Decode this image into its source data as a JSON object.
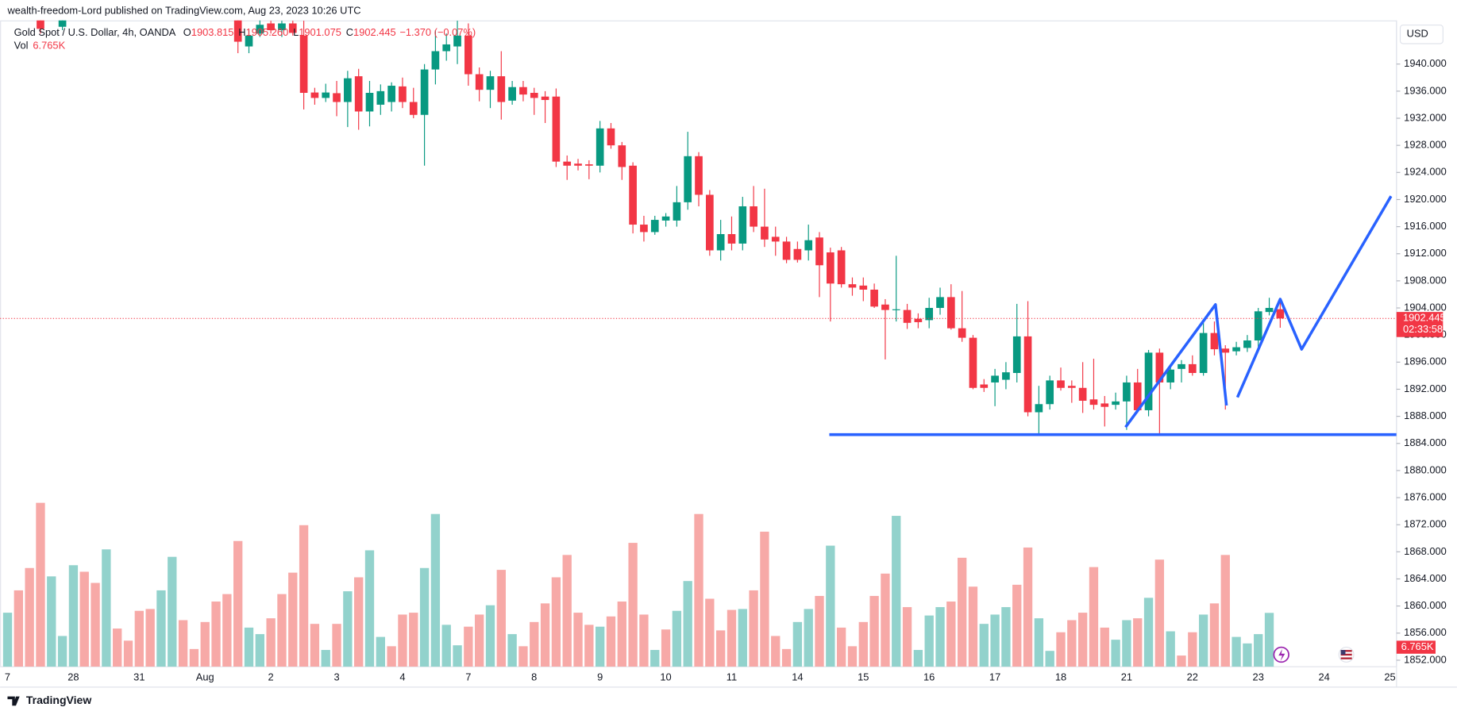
{
  "page": {
    "credit": "wealth-freedom-Lord published on TradingView.com, Aug 23, 2023 10:26 UTC",
    "currency": "USD",
    "brand": "TradingView",
    "countdown": "02:33:58"
  },
  "chart_data": {
    "type": "candlestick",
    "header": {
      "symbol": "Gold Spot / U.S. Dollar, 4h, OANDA",
      "ohlc": [
        {
          "key": "O",
          "value": "1903.815"
        },
        {
          "key": "H",
          "value": "1905.260"
        },
        {
          "key": "L",
          "value": "1901.075"
        },
        {
          "key": "C",
          "value": "1902.445"
        }
      ],
      "change": "−1.370 (−0.07%)",
      "vol_key": "Vol",
      "vol_value": "6.765K"
    },
    "up_color": "#089981",
    "down_color": "#f23645",
    "volume_up_color": "#92d2cc",
    "volume_down_color": "#f7a9a7",
    "drawing_color": "#2962ff",
    "grid": true,
    "xlim": [
      -0.68,
      126.6
    ],
    "ylim": [
      1851.04,
      1946.44
    ],
    "volume_lim": [
      0,
      81200
    ],
    "xticks": [
      {
        "value": 0,
        "label": "7"
      },
      {
        "value": 6,
        "label": "28"
      },
      {
        "value": 12,
        "label": "31"
      },
      {
        "value": 18,
        "label": "Aug"
      },
      {
        "value": 24,
        "label": "2"
      },
      {
        "value": 30,
        "label": "3"
      },
      {
        "value": 36,
        "label": "4"
      },
      {
        "value": 42,
        "label": "7"
      },
      {
        "value": 48,
        "label": "8"
      },
      {
        "value": 54,
        "label": "9"
      },
      {
        "value": 60,
        "label": "10"
      },
      {
        "value": 66,
        "label": "11"
      },
      {
        "value": 72,
        "label": "14"
      },
      {
        "value": 78,
        "label": "15"
      },
      {
        "value": 84,
        "label": "16"
      },
      {
        "value": 90,
        "label": "17"
      },
      {
        "value": 96,
        "label": "18"
      },
      {
        "value": 102,
        "label": "21"
      },
      {
        "value": 108,
        "label": "22"
      },
      {
        "value": 114,
        "label": "23"
      },
      {
        "value": 120,
        "label": "24"
      },
      {
        "value": 126,
        "label": "25"
      }
    ],
    "yticks": [
      {
        "value": 1852,
        "label": "1852.000"
      },
      {
        "value": 1856,
        "label": "1856.000"
      },
      {
        "value": 1860,
        "label": "1860.000"
      },
      {
        "value": 1864,
        "label": "1864.000"
      },
      {
        "value": 1868,
        "label": "1868.000"
      },
      {
        "value": 1872,
        "label": "1872.000"
      },
      {
        "value": 1876,
        "label": "1876.000"
      },
      {
        "value": 1880,
        "label": "1880.000"
      },
      {
        "value": 1884,
        "label": "1884.000"
      },
      {
        "value": 1888,
        "label": "1888.000"
      },
      {
        "value": 1892,
        "label": "1892.000"
      },
      {
        "value": 1896,
        "label": "1896.000"
      },
      {
        "value": 1900,
        "label": "1900.000"
      },
      {
        "value": 1904,
        "label": "1904.000"
      },
      {
        "value": 1908,
        "label": "1908.000"
      },
      {
        "value": 1912,
        "label": "1912.000"
      },
      {
        "value": 1916,
        "label": "1916.000"
      },
      {
        "value": 1920,
        "label": "1920.000"
      },
      {
        "value": 1924,
        "label": "1924.000"
      },
      {
        "value": 1928,
        "label": "1928.000"
      },
      {
        "value": 1932,
        "label": "1932.000"
      },
      {
        "value": 1936,
        "label": "1936.000"
      },
      {
        "value": 1940,
        "label": "1940.000"
      }
    ],
    "candles": {
      "x": [
        3,
        5,
        21,
        22,
        23,
        24,
        25,
        26,
        27,
        28,
        29,
        30,
        31,
        32,
        33,
        34,
        35,
        36,
        37,
        38,
        39,
        40,
        41,
        42,
        43,
        44,
        45,
        46,
        47,
        48,
        49,
        50,
        51,
        52,
        53,
        54,
        55,
        56,
        57,
        58,
        59,
        60,
        61,
        62,
        63,
        64,
        65,
        66,
        67,
        68,
        69,
        70,
        71,
        72,
        73,
        74,
        75,
        76,
        77,
        78,
        79,
        80,
        81,
        82,
        83,
        84,
        85,
        86,
        87,
        88,
        89,
        90,
        91,
        92,
        93,
        94,
        95,
        96,
        97,
        98,
        99,
        100,
        101,
        102,
        103,
        104,
        105,
        106,
        107,
        108,
        109,
        110,
        111,
        112,
        113,
        114,
        115,
        116
      ],
      "open": [
        1948,
        1945.5,
        1947,
        1942.6,
        1944.5,
        1946,
        1945,
        1946,
        1944.2,
        1935.8,
        1935,
        1935.7,
        1934.4,
        1938.2,
        1933,
        1934,
        1934.4,
        1936.7,
        1934.4,
        1932.5,
        1939.2,
        1941.9,
        1942.6,
        1944.2,
        1938.5,
        1936.2,
        1938.2,
        1934.6,
        1936.6,
        1935.75,
        1935.2,
        1935.2,
        1925.6,
        1925.3,
        1925.2,
        1925,
        1930.5,
        1928,
        1925,
        1916.3,
        1915.2,
        1916.9,
        1916.9,
        1919.6,
        1926.4,
        1920.7,
        1912.5,
        1914.9,
        1913.5,
        1919,
        1916,
        1914.5,
        1913.8,
        1912.7,
        1912.5,
        1914.4,
        1912.2,
        1912.5,
        1907.5,
        1907.3,
        1906.7,
        1904.5,
        1903.7,
        1903.7,
        1902.4,
        1902.2,
        1904,
        1905.6,
        1901,
        1899.6,
        1892.7,
        1893,
        1893.4,
        1894.4,
        1899.8,
        1888.6,
        1889.8,
        1893.3,
        1892.5,
        1892.2,
        1890.5,
        1889.9,
        1889.7,
        1890.2,
        1893,
        1888.9,
        1897.4,
        1893,
        1895,
        1895.7,
        1894.4,
        1900.3,
        1898,
        1897.6,
        1898.1,
        1899.2,
        1903.4,
        1903.815
      ],
      "high": [
        1950,
        1948,
        1948,
        1945,
        1946.5,
        1946.4,
        1946.4,
        1946.4,
        1946.4,
        1936.5,
        1937.1,
        1937.5,
        1939,
        1939.3,
        1937.5,
        1937,
        1937.3,
        1938,
        1936.5,
        1940,
        1945,
        1944.5,
        1946.4,
        1946,
        1939.5,
        1939,
        1941.9,
        1937.5,
        1937.5,
        1936.5,
        1936,
        1936.4,
        1926.5,
        1926,
        1925.8,
        1931.6,
        1931.3,
        1928.5,
        1925.5,
        1917.6,
        1917.6,
        1918,
        1922,
        1930,
        1927,
        1921.4,
        1917,
        1917.5,
        1920.4,
        1922,
        1921.6,
        1916,
        1914.5,
        1913.8,
        1916.3,
        1915.2,
        1912.9,
        1913,
        1908.5,
        1908.5,
        1907.6,
        1905.3,
        1911.7,
        1904.6,
        1903.2,
        1905.5,
        1907,
        1907.5,
        1906.5,
        1900,
        1893.5,
        1895,
        1896,
        1904.6,
        1905,
        1892.5,
        1894,
        1895.2,
        1893.3,
        1896,
        1896.5,
        1891,
        1891.5,
        1894,
        1895,
        1897.8,
        1898,
        1895.5,
        1896.3,
        1897,
        1902,
        1902,
        1898.5,
        1899,
        1900,
        1904,
        1905.5,
        1905.26
      ],
      "low": [
        1944.5,
        1945,
        1941.6,
        1941.6,
        1944,
        1944.5,
        1944,
        1944.2,
        1933.3,
        1934,
        1934.4,
        1932.3,
        1930.7,
        1930.3,
        1930.8,
        1932.5,
        1933,
        1933.5,
        1932,
        1925,
        1937,
        1940.5,
        1940,
        1936.8,
        1934.5,
        1933.5,
        1931.8,
        1934,
        1934.5,
        1932.5,
        1931.3,
        1924.8,
        1922.9,
        1924.3,
        1923,
        1924,
        1927.5,
        1922.9,
        1915,
        1913.8,
        1914.8,
        1916,
        1916,
        1918.5,
        1919,
        1911.7,
        1911,
        1912.5,
        1912.5,
        1915.2,
        1913,
        1911.7,
        1910.6,
        1910.7,
        1911,
        1905.6,
        1902,
        1907,
        1905.8,
        1905,
        1904,
        1896.4,
        1902,
        1900.9,
        1901,
        1901,
        1903,
        1900.8,
        1899,
        1892,
        1891.6,
        1889.5,
        1892,
        1893,
        1888,
        1885.3,
        1889,
        1891.8,
        1890,
        1888.5,
        1889,
        1886.5,
        1889,
        1886,
        1888.5,
        1888,
        1885.3,
        1892,
        1893,
        1894,
        1894,
        1897,
        1889,
        1897,
        1897.5,
        1898,
        1902.9,
        1901.075
      ],
      "close": [
        1945.2,
        1947,
        1943.3,
        1944.2,
        1945.8,
        1945,
        1946,
        1944.6,
        1935.75,
        1935,
        1935.8,
        1934.4,
        1937.9,
        1933,
        1935.75,
        1936,
        1936.8,
        1934.4,
        1932.5,
        1939.2,
        1941.9,
        1942.9,
        1944.2,
        1938.5,
        1936.2,
        1938.2,
        1934.4,
        1936.6,
        1935.5,
        1935,
        1934.7,
        1925.6,
        1925,
        1925,
        1925,
        1930.5,
        1928,
        1924.8,
        1916.3,
        1915.2,
        1917,
        1917.5,
        1919.6,
        1926.4,
        1920.7,
        1912.5,
        1914.9,
        1913.5,
        1919,
        1916,
        1914.1,
        1913.8,
        1911.1,
        1911.1,
        1914,
        1910.3,
        1907.6,
        1907.5,
        1907,
        1906.7,
        1904.2,
        1903.7,
        1903.8,
        1901.8,
        1901.9,
        1904,
        1905.6,
        1901,
        1899.6,
        1892.2,
        1892.2,
        1894,
        1894.5,
        1899.8,
        1888.6,
        1889.8,
        1893.3,
        1892.2,
        1892.2,
        1890.3,
        1889.7,
        1889.4,
        1890.2,
        1893,
        1888.9,
        1897.4,
        1893,
        1894.9,
        1895.7,
        1894.4,
        1900.3,
        1897.9,
        1897.4,
        1898.2,
        1899.2,
        1903.5,
        1904,
        1902.445
      ]
    },
    "volume": {
      "values": [
        6786,
        9594,
        12402,
        20592,
        11349,
        3861,
        12753,
        11934,
        10530,
        14742,
        4797,
        3276,
        7020,
        7254,
        9594,
        13806,
        5850,
        2223,
        5616,
        8190,
        9126,
        15795,
        4914,
        4095,
        6084,
        9126,
        11817,
        17784,
        5382,
        2106,
        5382,
        9477,
        11232,
        14625,
        3744,
        2574,
        6552,
        6786,
        12402,
        19188,
        5265,
        2691,
        5031,
        6552,
        7722,
        12168,
        4095,
        2574,
        5616,
        7956,
        11232,
        14040,
        6786,
        5265,
        5031,
        6318,
        8190,
        15561,
        6552,
        2106,
        4680,
        7020,
        10764,
        19188,
        8541,
        4563,
        7137,
        7254,
        9594,
        16965,
        3861,
        2223,
        5616,
        7254,
        8892,
        15210,
        4914,
        2574,
        5616,
        8892,
        11700,
        18954,
        7488,
        2106,
        6435,
        7488,
        8190,
        13689,
        10062,
        5382,
        6552,
        7488,
        10296,
        14976,
        6084,
        1989,
        4329,
        5850,
        6786,
        12519,
        4914,
        3393,
        5850,
        6084,
        8658,
        13455,
        4446,
        1404,
        4329,
        6552,
        7956,
        14040,
        3744,
        2925,
        4095,
        6765
      ],
      "up": [
        1,
        0,
        0,
        0,
        1,
        1,
        1,
        0,
        0,
        1,
        0,
        0,
        0,
        0,
        1,
        1,
        0,
        0,
        0,
        0,
        0,
        0,
        1,
        1,
        0,
        0,
        0,
        0,
        0,
        1,
        0,
        1,
        0,
        1,
        1,
        0,
        0,
        0,
        1,
        1,
        1,
        1,
        0,
        0,
        1,
        0,
        1,
        0,
        0,
        0,
        0,
        0,
        0,
        0,
        1,
        0,
        0,
        0,
        0,
        1,
        0,
        1,
        1,
        0,
        0,
        0,
        0,
        1,
        0,
        0,
        0,
        0,
        1,
        1,
        0,
        1,
        0,
        0,
        0,
        0,
        0,
        1,
        0,
        1,
        1,
        1,
        0,
        0,
        0,
        1,
        1,
        1,
        0,
        0,
        1,
        1,
        0,
        0,
        0,
        0,
        0,
        1,
        1,
        0,
        1,
        0,
        1,
        0,
        0,
        1,
        0,
        0,
        1,
        1,
        1,
        1
      ],
      "last_value_label": "6.765K"
    },
    "drawings": [
      {
        "points": [
          [
            74.9,
            1885.3
          ],
          [
            126.6,
            1885.3
          ]
        ]
      },
      {
        "points": [
          [
            101.9,
            1886.4
          ],
          [
            110.1,
            1904.5
          ],
          [
            111.1,
            1889.6
          ]
        ]
      },
      {
        "points": [
          [
            112.1,
            1890.8
          ],
          [
            116,
            1905.3
          ],
          [
            117.95,
            1897.9
          ],
          [
            126.1,
            1920.5
          ]
        ]
      }
    ]
  }
}
